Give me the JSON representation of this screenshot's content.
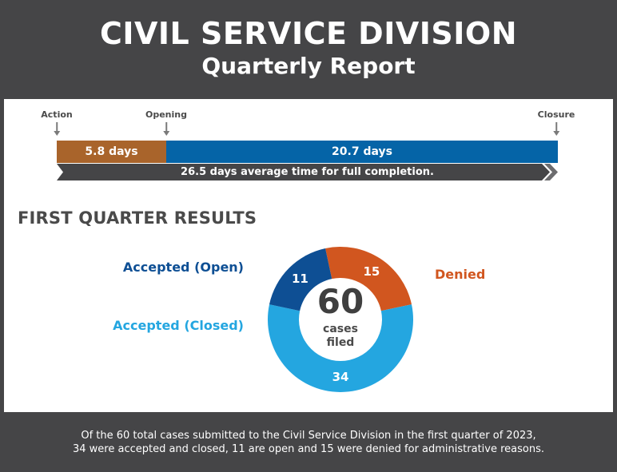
{
  "header": {
    "title": "CIVIL SERVICE DIVISION",
    "subtitle": "Quarterly Report"
  },
  "timeline": {
    "milestones": [
      {
        "label": "Action"
      },
      {
        "label": "Opening"
      },
      {
        "label": "Closure"
      }
    ],
    "segments": [
      {
        "label": "5.8 days",
        "days": 5.8,
        "color": "#a9642b"
      },
      {
        "label": "20.7 days",
        "days": 20.7,
        "color": "#0564a7"
      }
    ],
    "total_label": "26.5 days average time for full completion.",
    "total_days": 26.5,
    "total_color": "#454547"
  },
  "results": {
    "section_title": "FIRST QUARTER RESULTS",
    "total": "60",
    "center_label_line1": "cases",
    "center_label_line2": "filed",
    "categories": [
      {
        "name": "Accepted (Open)",
        "value": 11,
        "color": "#0e4f94"
      },
      {
        "name": "Accepted (Closed)",
        "value": 34,
        "color": "#24a6e0"
      },
      {
        "name": "Denied",
        "value": 15,
        "color": "#d1561f"
      }
    ]
  },
  "chart_data": {
    "type": "pie",
    "title": "FIRST QUARTER RESULTS",
    "center_text": "60 cases filed",
    "categories": [
      "Accepted (Open)",
      "Accepted (Closed)",
      "Denied"
    ],
    "values": [
      11,
      34,
      15
    ],
    "colors": [
      "#0e4f94",
      "#24a6e0",
      "#d1561f"
    ],
    "total": 60,
    "donut": true
  },
  "footer": {
    "line1": "Of the 60 total cases submitted to the Civil Service Division in the first quarter of 2023,",
    "line2": "34 were accepted and closed, 11 are open and 15 were denied for administrative reasons."
  }
}
